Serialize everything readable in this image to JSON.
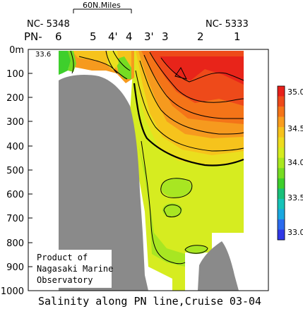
{
  "chart_data": {
    "type": "heatmap",
    "title": "Salinity along PN line,Cruise 03-04",
    "y_axis": {
      "ticks": [
        "0m",
        "100",
        "200",
        "300",
        "400",
        "500",
        "600",
        "700",
        "800",
        "900",
        "1000"
      ],
      "range": [
        0,
        1000
      ],
      "inverted": true
    },
    "stations": [
      "6",
      "5",
      "4'",
      "4",
      "3'",
      "3",
      "2",
      "1"
    ],
    "line_prefix": "PN-",
    "left_endpoint": "NC- 5348",
    "right_endpoint": "NC- 5333",
    "scale_bar_label": "60N.Miles",
    "surface_value_label": "33.6",
    "colorbar": {
      "ticks": [
        "35.0",
        "34.5",
        "34.0",
        "33.5",
        "33.0"
      ],
      "colors": [
        "#e8201a",
        "#ee4a1a",
        "#f57418",
        "#f99d1e",
        "#f6c21c",
        "#eedc1e",
        "#d5ec1f",
        "#a9e81f",
        "#76dc22",
        "#3ecf2c",
        "#19c07a",
        "#16c3b8",
        "#1aa8e0",
        "#2b6bee",
        "#3038e6"
      ]
    },
    "credit": [
      "Product of",
      "Nagasaki Marine",
      "Observatory"
    ]
  }
}
